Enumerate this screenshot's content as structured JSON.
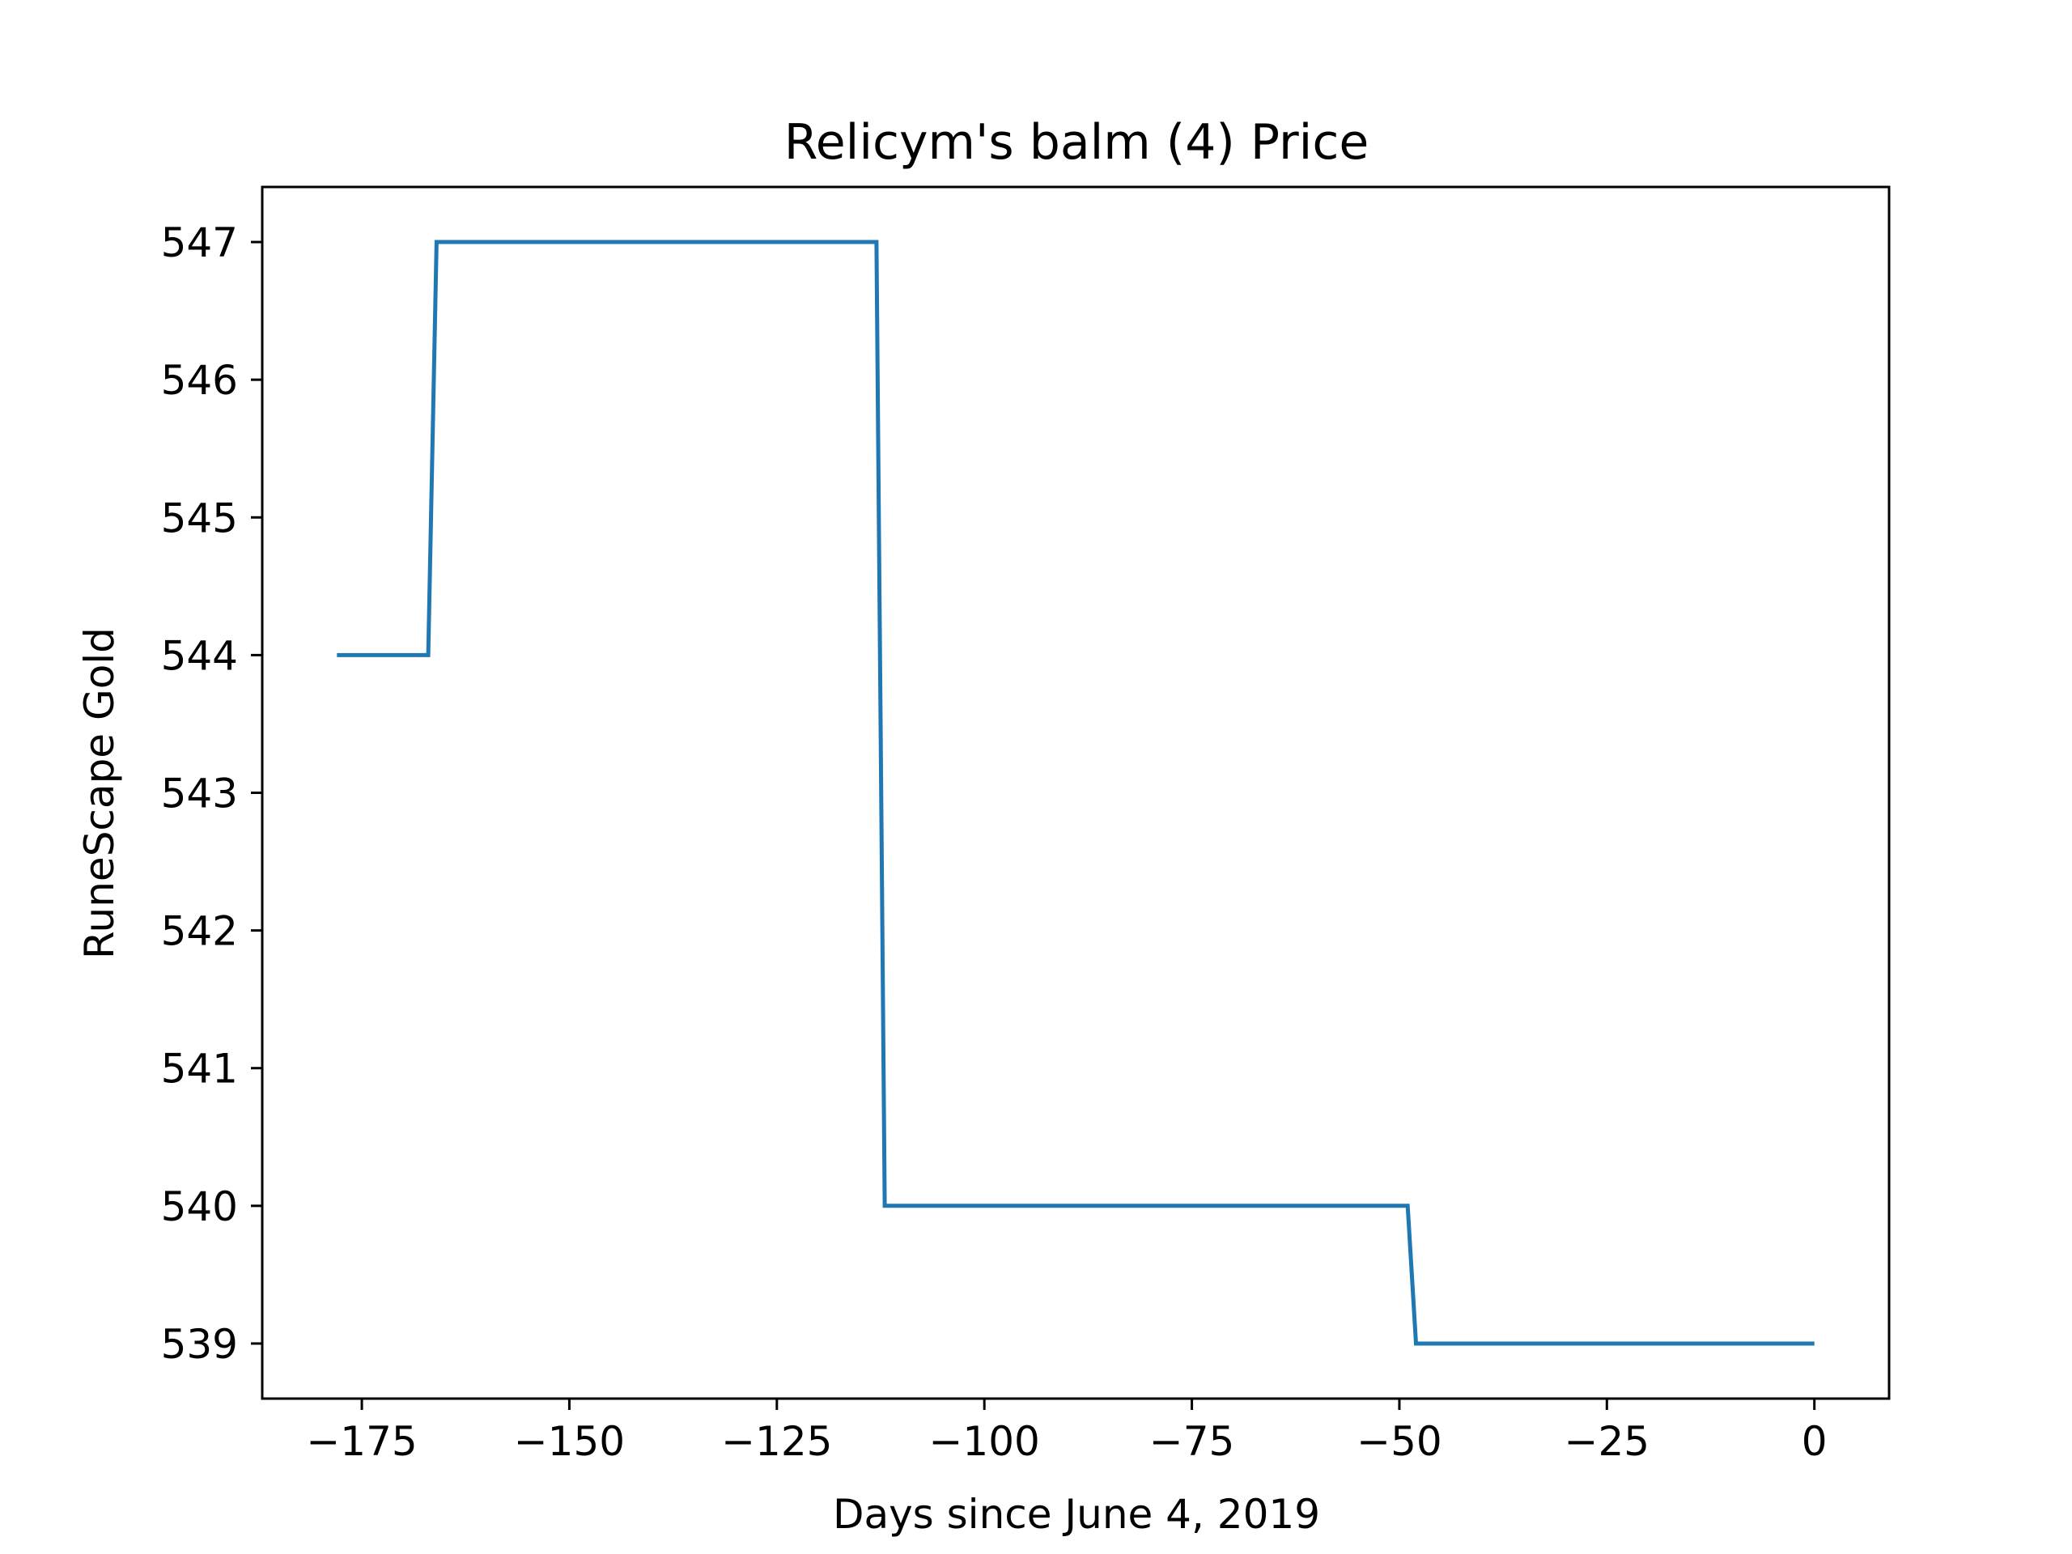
{
  "chart_data": {
    "type": "line",
    "title": "Relicym's balm (4) Price",
    "xlabel": "Days since June 4, 2019",
    "ylabel": "RuneScape Gold",
    "xlim": [
      -187,
      9
    ],
    "ylim": [
      538.6,
      547.4
    ],
    "x_ticks": [
      -175,
      -150,
      -125,
      -100,
      -75,
      -50,
      -25,
      0
    ],
    "x_tick_labels": [
      "−175",
      "−150",
      "−125",
      "−100",
      "−75",
      "−50",
      "−25",
      "0"
    ],
    "y_ticks": [
      539,
      540,
      541,
      542,
      543,
      544,
      545,
      546,
      547
    ],
    "y_tick_labels": [
      "539",
      "540",
      "541",
      "542",
      "543",
      "544",
      "545",
      "546",
      "547"
    ],
    "grid": false,
    "series": [
      {
        "color": "#1f77b4",
        "x": [
          -178,
          -167,
          -166,
          -113,
          -112,
          -49,
          -48,
          0
        ],
        "values": [
          544,
          544,
          547,
          547,
          540,
          540,
          539,
          539
        ]
      }
    ]
  }
}
